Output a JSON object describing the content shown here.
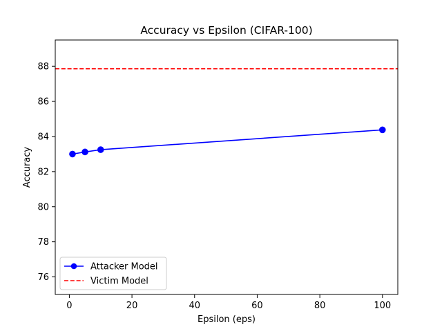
{
  "chart_data": {
    "type": "line",
    "title": "Accuracy vs Epsilon (CIFAR-100)",
    "xlabel": "Epsilon (eps)",
    "ylabel": "Accuracy",
    "xlim": [
      -4.5,
      104.9
    ],
    "ylim": [
      75.0,
      89.5
    ],
    "xticks": [
      0,
      20,
      40,
      60,
      80,
      100
    ],
    "yticks": [
      76,
      78,
      80,
      82,
      84,
      86,
      88
    ],
    "grid": false,
    "legend_position": "lower-left",
    "series": [
      {
        "name": "Attacker Model",
        "style": "solid-line-with-circle-markers",
        "color": "#0000ff",
        "x": [
          1,
          5,
          10,
          100
        ],
        "y": [
          83.0,
          83.12,
          83.25,
          84.38
        ]
      },
      {
        "name": "Victim Model",
        "style": "dashed-horizontal-line",
        "color": "#ff0000",
        "y": 87.86
      }
    ]
  }
}
